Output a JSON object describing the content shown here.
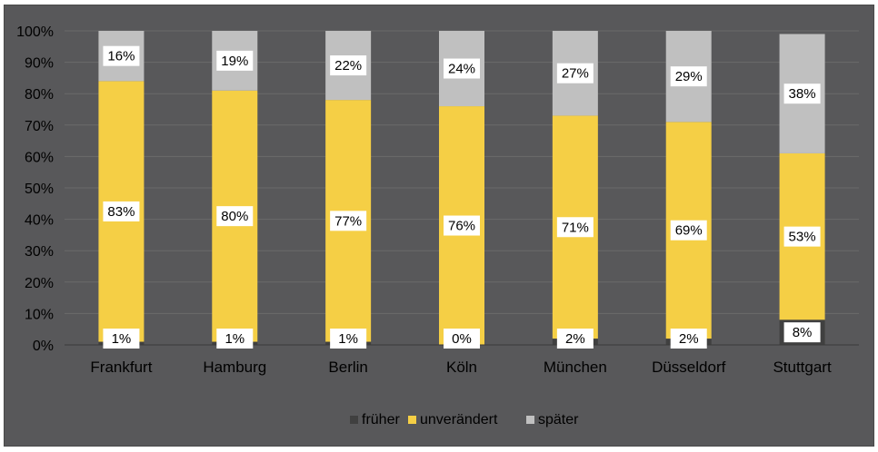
{
  "chart_data": {
    "type": "bar",
    "stacked": true,
    "categories": [
      "Frankfurt",
      "Hamburg",
      "Berlin",
      "Köln",
      "München",
      "Düsseldorf",
      "Stuttgart"
    ],
    "series": [
      {
        "name": "früher",
        "values": [
          1,
          1,
          1,
          0,
          2,
          2,
          8
        ],
        "labels": [
          "1%",
          "1%",
          "1%",
          "0%",
          "2%",
          "2%",
          "8%"
        ],
        "color": "#404040"
      },
      {
        "name": "unverändert",
        "values": [
          83,
          80,
          77,
          76,
          71,
          69,
          53
        ],
        "labels": [
          "83%",
          "80%",
          "77%",
          "76%",
          "71%",
          "69%",
          "53%"
        ],
        "color": "#f5cf45"
      },
      {
        "name": "später",
        "values": [
          16,
          19,
          22,
          24,
          27,
          29,
          38
        ],
        "labels": [
          "16%",
          "19%",
          "22%",
          "24%",
          "27%",
          "29%",
          "38%"
        ],
        "color": "#c0c0c0"
      }
    ],
    "yticks": [
      "0%",
      "10%",
      "20%",
      "30%",
      "40%",
      "50%",
      "60%",
      "70%",
      "80%",
      "90%",
      "100%"
    ],
    "ylim": [
      0,
      100
    ],
    "grid": true,
    "legend_position": "bottom-center",
    "colors": {
      "background": "#58585a",
      "grid": "#6a6a6a",
      "label_box": "#ffffff"
    }
  }
}
